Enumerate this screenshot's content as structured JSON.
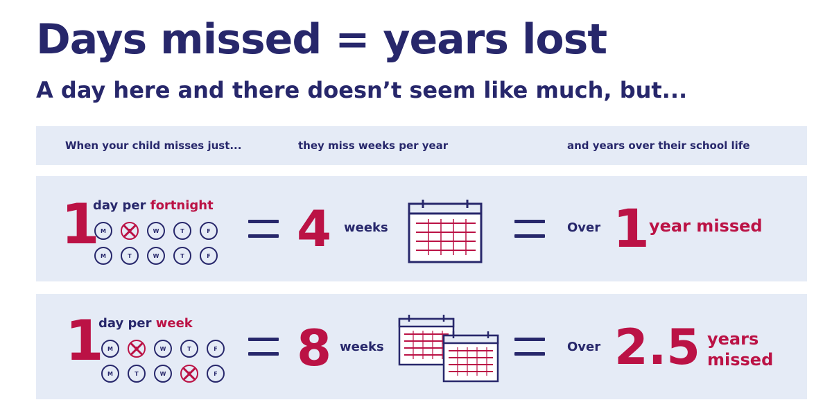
{
  "title": "Days missed = years lost",
  "subtitle": "A day here and there doesn’t seem like much, but...",
  "headers": {
    "col1": "When your child misses just...",
    "col2": "they miss weeks per year",
    "col3": "and years over their school life"
  },
  "rows": [
    {
      "count": "1",
      "period_prefix": "day per",
      "period_highlight": "fortnight",
      "week1": [
        "M",
        "T",
        "W",
        "T",
        "F"
      ],
      "week2": [
        "M",
        "T",
        "W",
        "T",
        "F"
      ],
      "weeks_number": "4",
      "weeks_label": "weeks",
      "over_label": "Over",
      "years_number": "1",
      "years_label": "year missed"
    },
    {
      "count": "1",
      "period_prefix": "day per",
      "period_highlight": "week",
      "week1": [
        "M",
        "T",
        "W",
        "T",
        "F"
      ],
      "week2": [
        "M",
        "T",
        "W",
        "T",
        "F"
      ],
      "weeks_number": "8",
      "weeks_label": "weeks",
      "over_label": "Over",
      "years_number": "2.5",
      "years_label_line1": "years",
      "years_label_line2": "missed"
    }
  ],
  "icons": [
    "calendar-icon",
    "calendar-stack-icon",
    "equals-icon",
    "day-circle-icon",
    "crossed-day-icon"
  ],
  "colors": {
    "navy": "#27276b",
    "red": "#bb1245",
    "panel": "#e5ebf6"
  }
}
